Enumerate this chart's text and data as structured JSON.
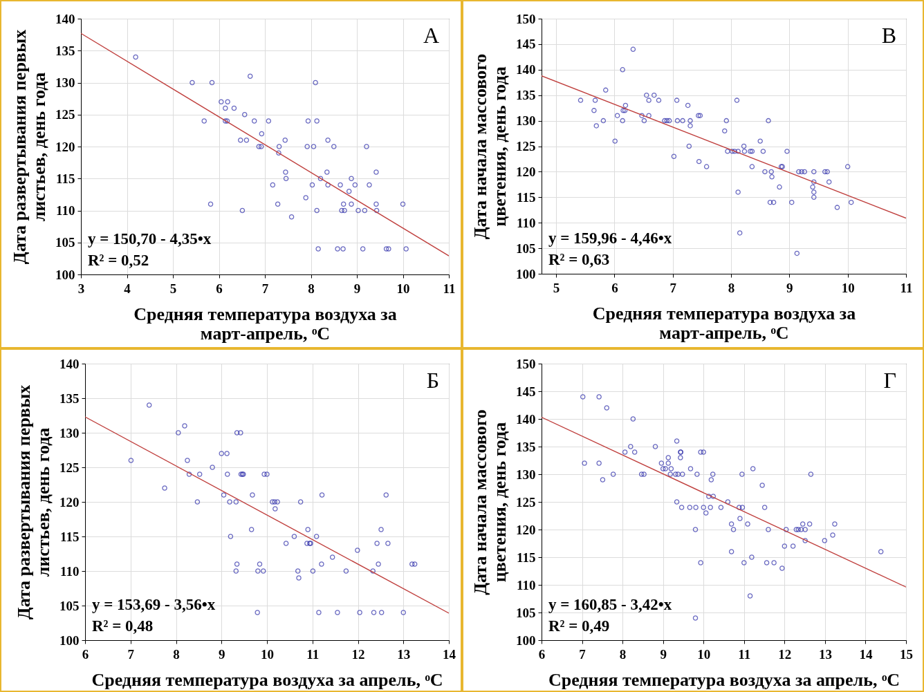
{
  "chart_data": [
    {
      "type": "scatter",
      "xlabel": "Средняя температура воздуха за март-апрель, ᵒC",
      "ylabel": "Дата развертывания первых листьев, день года",
      "xlim": [
        3,
        11
      ],
      "ylim": [
        100,
        140
      ],
      "xticks": [
        3,
        4,
        5,
        6,
        7,
        8,
        9,
        10,
        11
      ],
      "yticks": [
        100,
        105,
        110,
        115,
        120,
        125,
        130,
        135,
        140
      ],
      "grid": true,
      "annotations": [
        "А",
        "y = 150,70 - 4,35•x",
        "R² = 0,52"
      ],
      "series": [
        {
          "marker": "circle",
          "color": "#2b2ba8",
          "x": [
            4.19,
            5.42,
            5.85,
            6.68,
            8.1,
            6.05,
            6.19,
            6.14,
            6.33,
            6.56,
            5.68,
            6.14,
            6.18,
            6.77,
            7.08,
            7.94,
            8.13,
            6.93,
            6.47,
            6.6,
            7.44,
            8.37,
            6.87,
            6.92,
            7.31,
            7.92,
            8.06,
            8.5,
            9.21,
            7.3,
            7.45,
            8.35,
            9.42,
            7.46,
            8.21,
            8.88,
            7.17,
            8.03,
            8.37,
            8.64,
            8.96,
            9.27,
            8.83,
            7.89,
            5.82,
            7.28,
            8.71,
            8.88,
            9.42,
            10.0,
            6.51,
            8.13,
            8.67,
            8.73,
            9.03,
            9.17,
            9.43,
            7.58,
            8.16,
            8.58,
            8.7,
            9.13,
            9.64,
            9.69,
            10.07
          ],
          "values": [
            134,
            130,
            130,
            131,
            130,
            127,
            127,
            126,
            126,
            125,
            124,
            124,
            124,
            124,
            124,
            124,
            124,
            122,
            121,
            121,
            121,
            121,
            120,
            120,
            120,
            120,
            120,
            120,
            120,
            119,
            116,
            116,
            116,
            115,
            115,
            115,
            114,
            114,
            114,
            114,
            114,
            114,
            113,
            112,
            111,
            111,
            111,
            111,
            111,
            111,
            110,
            110,
            110,
            110,
            110,
            110,
            110,
            109,
            104,
            104,
            104,
            104,
            104,
            104,
            104
          ]
        },
        {
          "type": "line",
          "color": "#c0413f",
          "x": [
            3,
            11
          ],
          "values": [
            137.7,
            102.9
          ]
        }
      ]
    },
    {
      "type": "scatter",
      "xlabel": "Средняя температура воздуха за март-апрель, ᵒC",
      "ylabel": "Дата начала массового цветения, день года",
      "xlim": [
        4.75,
        11
      ],
      "ylim": [
        100,
        150
      ],
      "xticks": [
        5,
        6,
        7,
        8,
        9,
        10,
        11
      ],
      "yticks": [
        100,
        105,
        110,
        115,
        120,
        125,
        130,
        135,
        140,
        145,
        150
      ],
      "grid": true,
      "annotations": [
        "В",
        "y = 159,96 - 4,46•x",
        "R² = 0,63"
      ],
      "series": [
        {
          "marker": "circle",
          "color": "#2b2ba8",
          "x": [
            6.32,
            6.14,
            5.85,
            5.42,
            5.67,
            6.55,
            6.68,
            6.59,
            6.76,
            7.07,
            8.1,
            6.19,
            7.26,
            5.65,
            6.15,
            6.18,
            6.05,
            6.47,
            6.59,
            7.44,
            7.47,
            5.81,
            6.14,
            6.51,
            6.86,
            6.9,
            6.94,
            7.08,
            7.17,
            7.3,
            7.92,
            8.64,
            5.69,
            7.3,
            7.89,
            6.01,
            8.5,
            7.28,
            8.22,
            7.94,
            8.02,
            8.06,
            8.12,
            8.23,
            8.33,
            8.36,
            8.55,
            8.96,
            7.02,
            7.45,
            7.58,
            8.36,
            8.86,
            8.88,
            10.0,
            8.58,
            8.69,
            9.16,
            9.21,
            9.26,
            9.42,
            9.61,
            9.65,
            8.7,
            9.42,
            9.68,
            8.83,
            9.4,
            8.12,
            9.42,
            9.42,
            8.67,
            8.73,
            9.04,
            10.06,
            9.82,
            8.15,
            9.13
          ],
          "values": [
            144,
            140,
            136,
            134,
            134,
            135,
            135,
            134,
            134,
            134,
            134,
            133,
            133,
            132,
            132,
            132,
            131,
            131,
            131,
            131,
            131,
            130,
            130,
            130,
            130,
            130,
            130,
            130,
            130,
            130,
            130,
            130,
            129,
            129,
            128,
            126,
            126,
            125,
            125,
            124,
            124,
            124,
            124,
            124,
            124,
            124,
            124,
            124,
            123,
            122,
            121,
            121,
            121,
            121,
            121,
            120,
            120,
            120,
            120,
            120,
            120,
            120,
            120,
            119,
            118,
            118,
            117,
            117,
            116,
            116,
            115,
            114,
            114,
            114,
            114,
            113,
            108,
            104
          ]
        },
        {
          "type": "line",
          "color": "#c0413f",
          "x": [
            4.75,
            11
          ],
          "values": [
            138.8,
            110.9
          ]
        }
      ]
    },
    {
      "type": "scatter",
      "xlabel": "Средняя температура воздуха за апрель, ᵒC",
      "ylabel": "Дата развертывания первых листьев, день года",
      "xlim": [
        6,
        14
      ],
      "ylim": [
        100,
        140
      ],
      "xticks": [
        6,
        7,
        8,
        9,
        10,
        11,
        12,
        13,
        14
      ],
      "yticks": [
        100,
        105,
        110,
        115,
        120,
        125,
        130,
        135,
        140
      ],
      "grid": true,
      "annotations": [
        "Б",
        "y = 153,69 - 3,56•x",
        "R² = 0,48"
      ],
      "series": [
        {
          "marker": "circle",
          "color": "#2b2ba8",
          "x": [
            7.41,
            8.19,
            8.05,
            9.34,
            9.42,
            9.0,
            9.12,
            7.01,
            8.25,
            8.8,
            8.29,
            8.52,
            9.13,
            9.43,
            9.46,
            9.48,
            9.94,
            10.0,
            7.75,
            9.05,
            9.68,
            11.21,
            12.62,
            8.47,
            9.18,
            9.32,
            10.12,
            10.17,
            10.23,
            10.74,
            10.18,
            9.66,
            10.9,
            12.51,
            9.2,
            10.6,
            11.09,
            10.42,
            10.88,
            10.94,
            10.96,
            12.42,
            12.66,
            11.99,
            11.44,
            9.34,
            9.84,
            11.2,
            12.45,
            13.19,
            13.25,
            9.32,
            9.8,
            9.92,
            10.68,
            11.01,
            11.74,
            12.33,
            10.7,
            9.79,
            11.14,
            11.55,
            12.04,
            12.35,
            12.52,
            13.0
          ],
          "values": [
            134,
            131,
            130,
            130,
            130,
            127,
            127,
            126,
            126,
            125,
            124,
            124,
            124,
            124,
            124,
            124,
            124,
            124,
            122,
            121,
            121,
            121,
            121,
            120,
            120,
            120,
            120,
            120,
            120,
            120,
            119,
            116,
            116,
            116,
            115,
            115,
            115,
            114,
            114,
            114,
            114,
            114,
            114,
            113,
            112,
            111,
            111,
            111,
            111,
            111,
            111,
            110,
            110,
            110,
            110,
            110,
            110,
            110,
            109,
            104,
            104,
            104,
            104,
            104,
            104,
            104
          ]
        },
        {
          "type": "line",
          "color": "#c0413f",
          "x": [
            6,
            14
          ],
          "values": [
            132.3,
            103.9
          ]
        }
      ]
    },
    {
      "type": "scatter",
      "xlabel": "Средняя температура воздуха за апрель, ᵒC",
      "ylabel": "Дата начала массового цветения, день года",
      "xlim": [
        6,
        15
      ],
      "ylim": [
        100,
        150
      ],
      "xticks": [
        6,
        7,
        8,
        9,
        10,
        11,
        12,
        13,
        14,
        15
      ],
      "yticks": [
        100,
        105,
        110,
        115,
        120,
        125,
        130,
        135,
        140,
        145,
        150
      ],
      "grid": true,
      "annotations": [
        "Г",
        "y = 160,85 - 3,42•x",
        "R² = 0,49"
      ],
      "series": [
        {
          "marker": "circle",
          "color": "#2b2ba8",
          "x": [
            7.02,
            7.42,
            7.61,
            8.26,
            9.34,
            8.2,
            8.81,
            8.06,
            8.3,
            9.43,
            9.44,
            9.93,
            10.0,
            9.13,
            9.43,
            7.06,
            7.42,
            8.96,
            9.13,
            9.0,
            9.06,
            9.2,
            9.68,
            11.22,
            7.77,
            8.47,
            8.53,
            9.18,
            9.31,
            9.37,
            9.48,
            9.84,
            10.23,
            10.95,
            12.65,
            7.51,
            10.19,
            11.45,
            10.13,
            10.24,
            9.34,
            10.6,
            9.46,
            9.66,
            9.81,
            10.0,
            10.17,
            10.43,
            10.88,
            10.96,
            11.51,
            10.06,
            10.9,
            10.69,
            11.09,
            12.45,
            12.62,
            13.24,
            9.8,
            10.74,
            11.6,
            12.04,
            12.29,
            12.34,
            12.41,
            12.51,
            13.19,
            12.51,
            12.99,
            12.0,
            12.21,
            10.69,
            14.38,
            11.19,
            9.93,
            11.0,
            11.56,
            11.74,
            11.94,
            11.15,
            9.8
          ],
          "values": [
            144,
            144,
            142,
            140,
            136,
            135,
            135,
            134,
            134,
            134,
            134,
            134,
            134,
            133,
            133,
            132,
            132,
            132,
            132,
            131,
            131,
            131,
            131,
            131,
            130,
            130,
            130,
            130,
            130,
            130,
            130,
            130,
            130,
            130,
            130,
            129,
            129,
            128,
            126,
            126,
            125,
            125,
            124,
            124,
            124,
            124,
            124,
            124,
            124,
            124,
            124,
            123,
            122,
            121,
            121,
            121,
            121,
            121,
            120,
            120,
            120,
            120,
            120,
            120,
            120,
            120,
            119,
            118,
            118,
            117,
            117,
            116,
            116,
            115,
            114,
            114,
            114,
            114,
            113,
            108,
            104
          ]
        },
        {
          "type": "line",
          "color": "#c0413f",
          "x": [
            6,
            15
          ],
          "values": [
            140.3,
            109.6
          ]
        }
      ]
    }
  ]
}
